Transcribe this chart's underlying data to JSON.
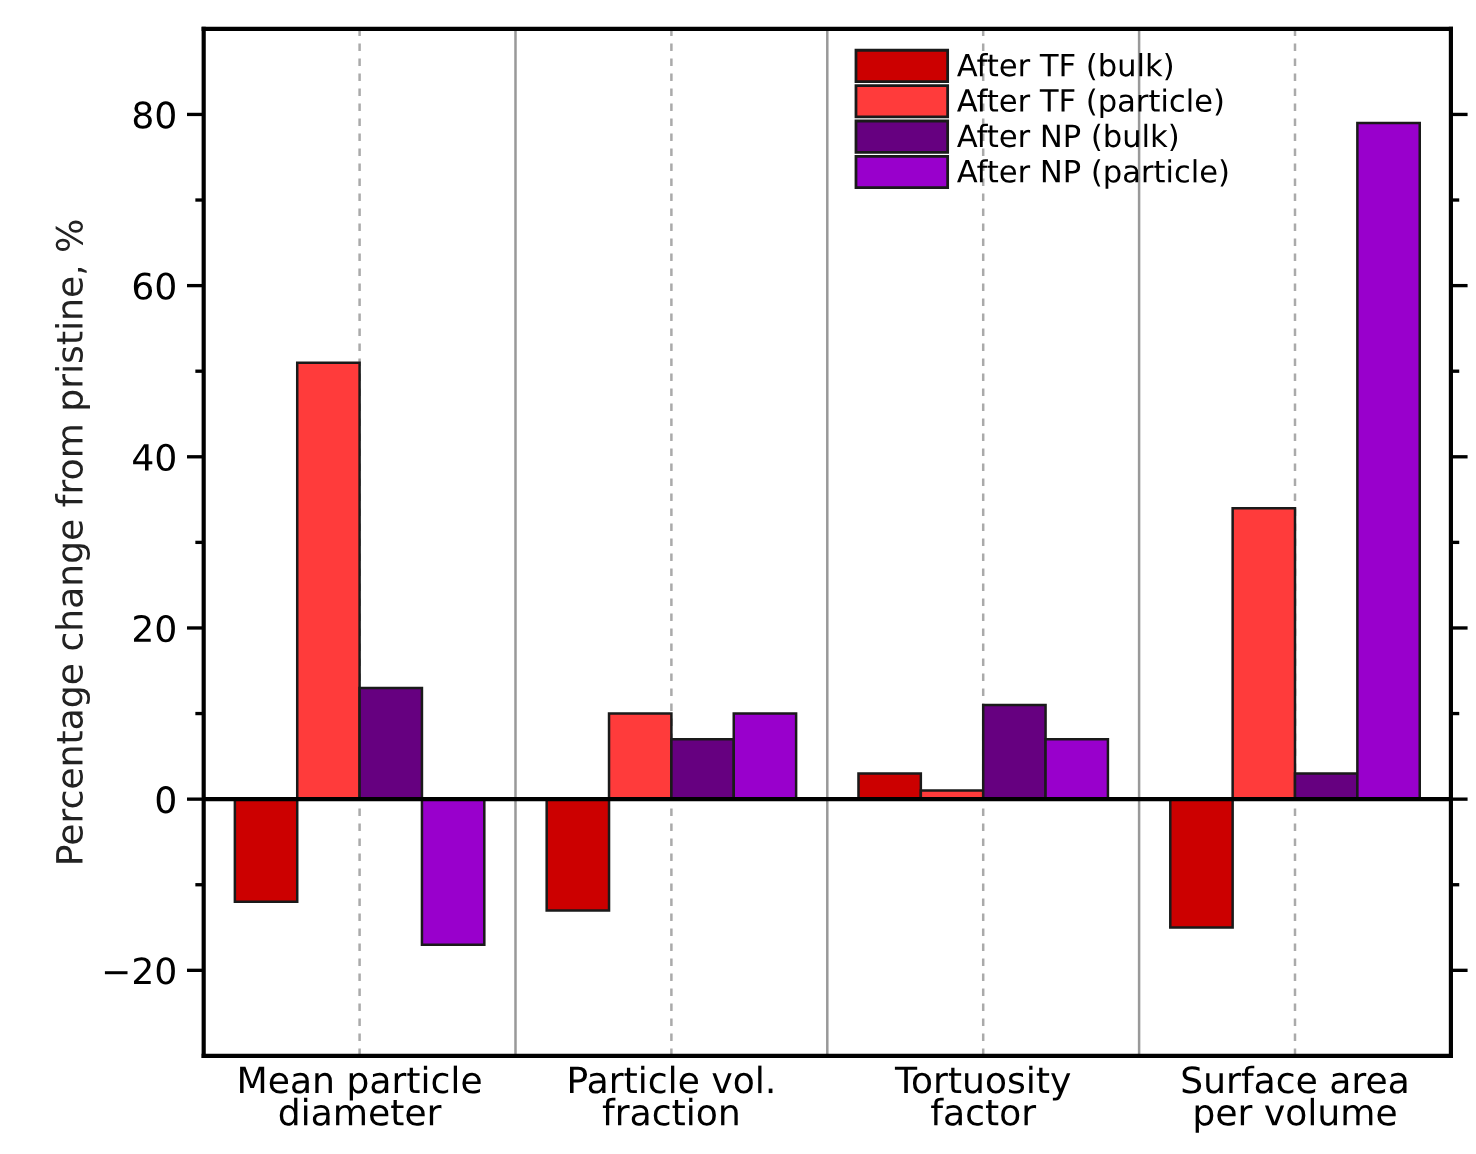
{
  "chart_data": {
    "type": "bar",
    "ylabel": "Percentage change from pristine, %",
    "categories": [
      "Mean particle\ndiameter",
      "Particle vol.\nfraction",
      "Tortuosity\nfactor",
      "Surface area\nper volume"
    ],
    "series": [
      {
        "name": "After TF (bulk)",
        "color": "#cc0000",
        "values": [
          -12,
          -13,
          3,
          -15
        ]
      },
      {
        "name": "After TF (particle)",
        "color": "#ff3b3b",
        "values": [
          51,
          10,
          1,
          34
        ]
      },
      {
        "name": "After NP (bulk)",
        "color": "#660080",
        "values": [
          13,
          7,
          11,
          3
        ]
      },
      {
        "name": "After NP (particle)",
        "color": "#9900cc",
        "values": [
          -17,
          10,
          7,
          79
        ]
      }
    ],
    "ylim": [
      -30,
      90
    ],
    "yticks": [
      -20,
      {
        "value": -10,
        "label": null
      },
      0,
      {
        "value": 10,
        "label": null
      },
      20,
      {
        "value": 30,
        "label": null
      },
      40,
      {
        "value": 50,
        "label": null
      },
      60,
      {
        "value": 70,
        "label": null
      },
      80
    ],
    "ref_lines": [
      {
        "axis": "y",
        "value": 0,
        "color": "#000000"
      }
    ],
    "grid": "x",
    "legend": "top right"
  }
}
